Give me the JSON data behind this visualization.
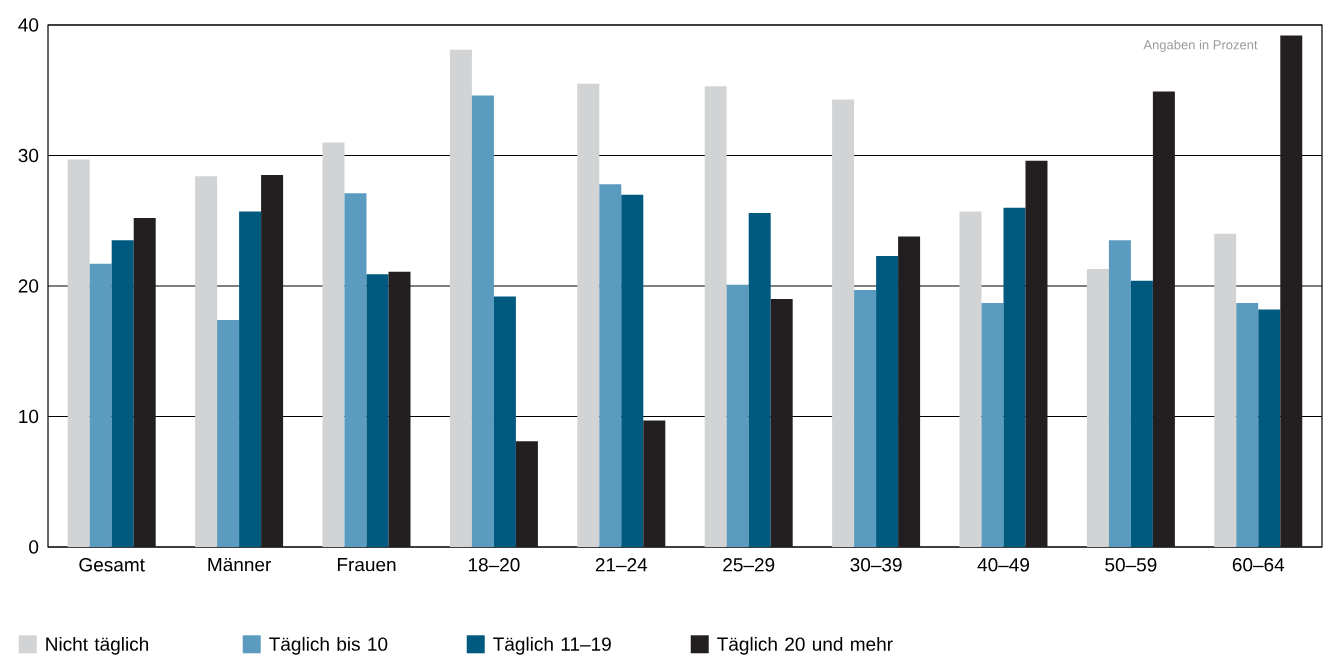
{
  "chart_data": {
    "type": "bar",
    "categories": [
      "Gesamt",
      "Männer",
      "Frauen",
      "18–20",
      "21–24",
      "25–29",
      "30–39",
      "40–49",
      "50–59",
      "60–64"
    ],
    "series": [
      {
        "name": "Nicht täglich",
        "color": "#d1d3d4",
        "values": [
          29.7,
          28.4,
          31.0,
          38.1,
          35.5,
          35.3,
          34.3,
          25.7,
          21.3,
          24.0
        ]
      },
      {
        "name": "Täglich bis 10",
        "color": "#5b9bbf",
        "values": [
          21.7,
          17.4,
          27.1,
          34.6,
          27.8,
          20.1,
          19.7,
          18.7,
          23.5,
          18.7
        ]
      },
      {
        "name": "Täglich 11–19",
        "color": "#005a80",
        "values": [
          23.5,
          25.7,
          20.9,
          19.2,
          27.0,
          25.6,
          22.3,
          26.0,
          20.4,
          18.2
        ]
      },
      {
        "name": "Täglich 20 und mehr",
        "color": "#231f20",
        "values": [
          25.2,
          28.5,
          21.1,
          8.1,
          9.7,
          19.0,
          23.8,
          29.6,
          34.9,
          39.2
        ]
      }
    ],
    "ylim": [
      0,
      40
    ],
    "yticks": [
      0,
      10,
      20,
      30,
      40
    ],
    "grid": "y",
    "legend": "bottom",
    "annotations": [
      "Angaben in Prozent"
    ]
  }
}
